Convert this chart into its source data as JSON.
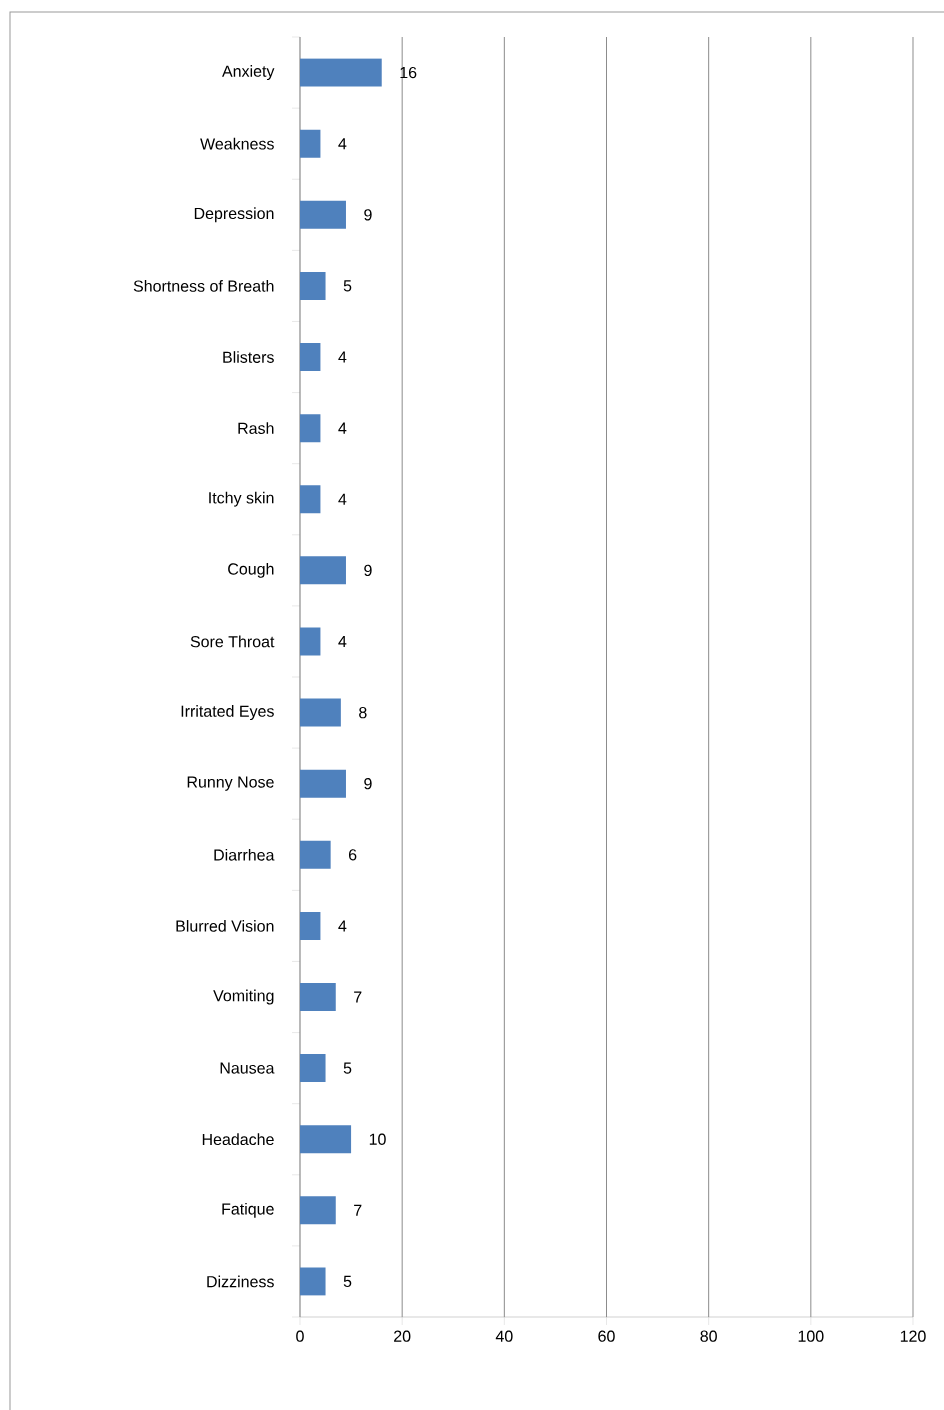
{
  "chart_data": {
    "type": "bar",
    "orientation": "horizontal",
    "categories": [
      "Anxiety",
      "Weakness",
      "Depression",
      "Shortness of Breath",
      "Blisters",
      "Rash",
      "Itchy skin",
      "Cough",
      "Sore Throat",
      "Irritated Eyes",
      "Runny Nose",
      "Diarrhea",
      "Blurred Vision",
      "Vomiting",
      "Nausea",
      "Headache",
      "Fatique",
      "Dizziness"
    ],
    "values": [
      16,
      4,
      9,
      5,
      4,
      4,
      4,
      9,
      4,
      8,
      9,
      6,
      4,
      7,
      5,
      10,
      7,
      5
    ],
    "color": "#4f81bd",
    "xlim": [
      0,
      120
    ],
    "xticks": [
      0,
      20,
      40,
      60,
      80,
      100,
      120
    ],
    "grid": "x",
    "data_labels": true
  }
}
